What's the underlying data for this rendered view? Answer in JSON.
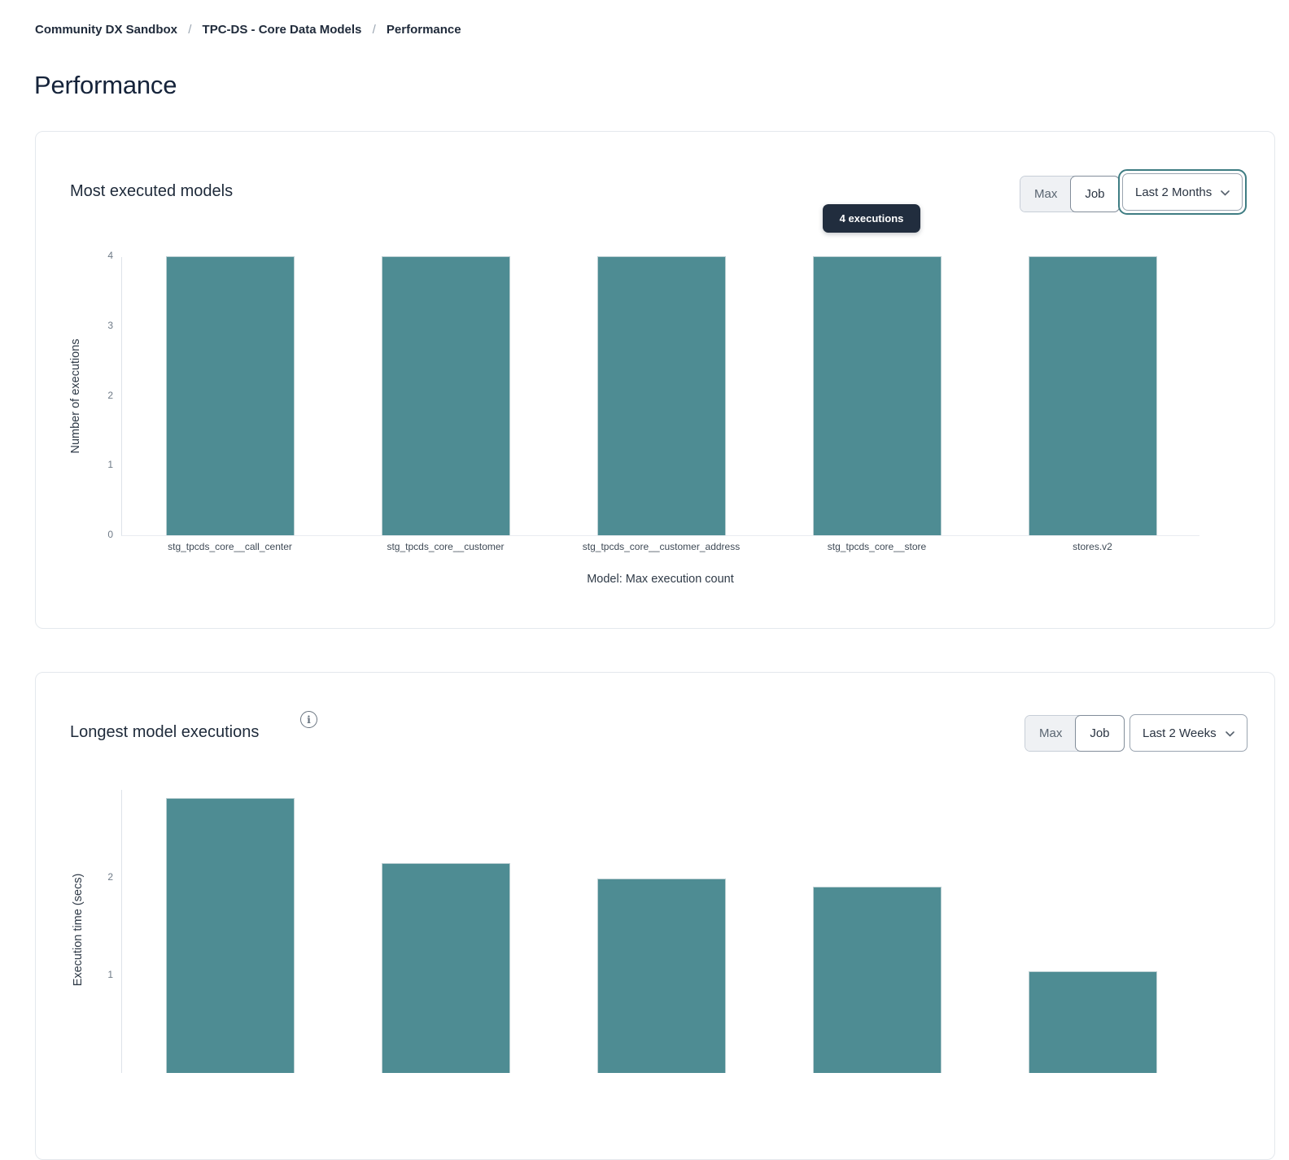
{
  "breadcrumb": {
    "separator": "/",
    "items": [
      "Community DX Sandbox",
      "TPC-DS - Core Data Models",
      "Performance"
    ]
  },
  "page": {
    "title": "Performance"
  },
  "colors": {
    "bar": "#4e8c93",
    "focus_ring": "#3f7d83",
    "tooltip_bg": "#212d3e",
    "card_border": "#e4e8ed"
  },
  "cards": [
    {
      "title": "Most executed models",
      "toggle": {
        "max": "Max",
        "job": "Job",
        "selected": "Max"
      },
      "dropdown": {
        "value": "Last 2 Months",
        "focused": true
      },
      "tooltip": "4 executions"
    },
    {
      "title": "Longest model executions",
      "toggle": {
        "max": "Max",
        "job": "Job",
        "selected": "Max"
      },
      "dropdown": {
        "value": "Last 2 Weeks",
        "focused": false
      }
    }
  ],
  "chart_data": [
    {
      "type": "bar",
      "title": "Most executed models",
      "categories": [
        "stg_tpcds_core__call_center",
        "stg_tpcds_core__customer",
        "stg_tpcds_core__customer_address",
        "stg_tpcds_core__store",
        "stores.v2"
      ],
      "values": [
        4,
        4,
        4,
        4,
        4
      ],
      "xlabel": "Model: Max execution count",
      "ylabel": "Number of executions",
      "ylim": [
        0,
        4
      ],
      "yticks": [
        0,
        1,
        2,
        3,
        4
      ],
      "grid": false,
      "legend": "none",
      "tooltip": {
        "label": "4 executions",
        "bar_index": 3
      }
    },
    {
      "type": "bar",
      "title": "Longest model executions",
      "categories": [
        "",
        "",
        "",
        "",
        ""
      ],
      "values": [
        2.82,
        2.15,
        1.99,
        1.91,
        1.04
      ],
      "xlabel": "",
      "ylabel": "Execution time (secs)",
      "ylim": [
        0,
        2.9
      ],
      "yticks": [
        1,
        2
      ],
      "grid": false,
      "legend": "none",
      "clipped_bottom": true
    }
  ]
}
